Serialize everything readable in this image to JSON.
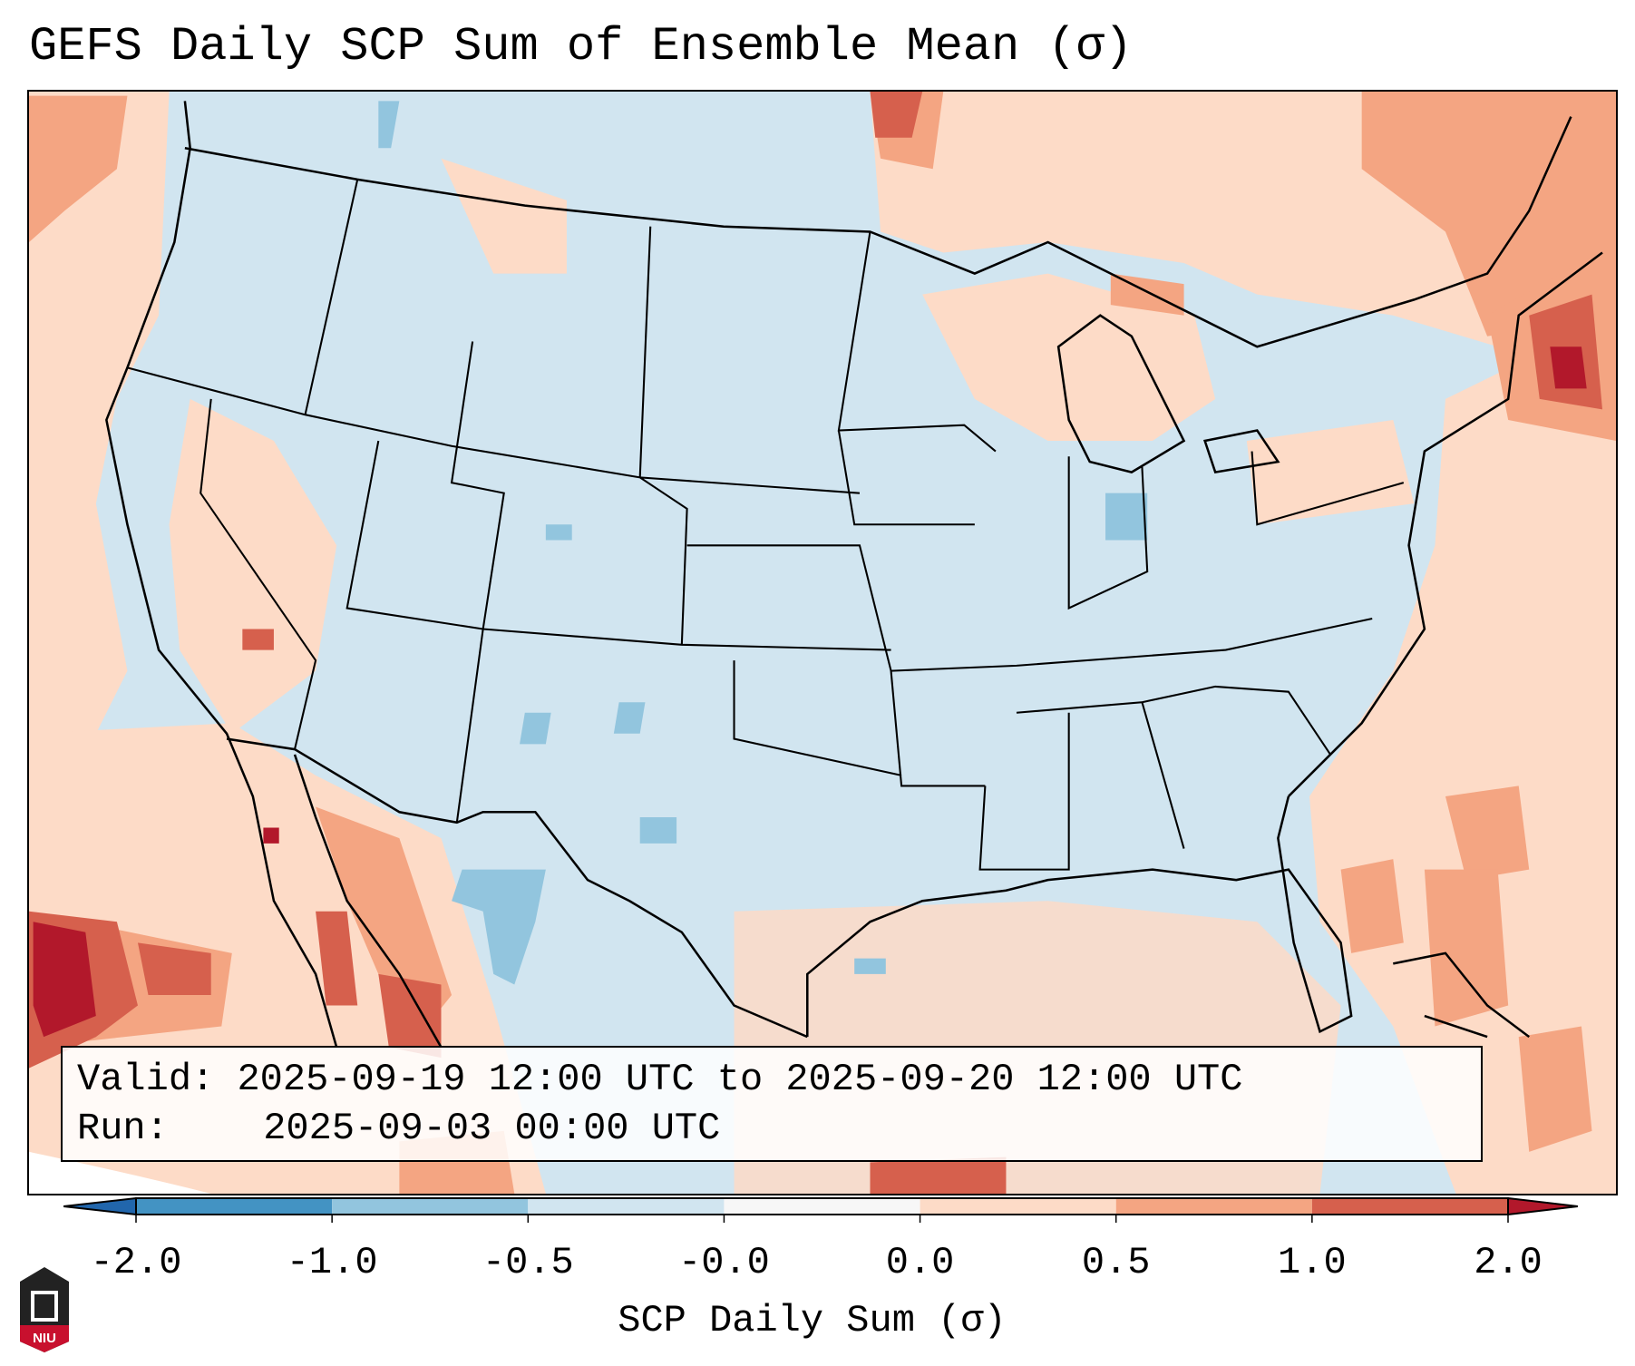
{
  "title": "GEFS Daily SCP Sum of Ensemble Mean (σ)",
  "info": {
    "valid_label": "Valid:",
    "valid_value": "2025-09-19 12:00 UTC to 2025-09-20 12:00 UTC",
    "run_label": "Run:",
    "run_value": "2025-09-03 00:00 UTC"
  },
  "colorbar": {
    "label": "SCP Daily Sum (σ)",
    "ticks": [
      "-2.0",
      "-1.0",
      "-0.5",
      "-0.0",
      "0.0",
      "0.5",
      "1.0",
      "2.0"
    ],
    "levels": [
      -2.0,
      -1.0,
      -0.5,
      -0.0,
      0.0,
      0.5,
      1.0,
      2.0
    ],
    "colors": [
      "#2166ac",
      "#4393c3",
      "#92c5de",
      "#d1e5f0",
      "#f7f7f7",
      "#fddbc7",
      "#f4a582",
      "#d6604d",
      "#b2182b"
    ]
  },
  "logo": {
    "text": "NIU"
  }
}
